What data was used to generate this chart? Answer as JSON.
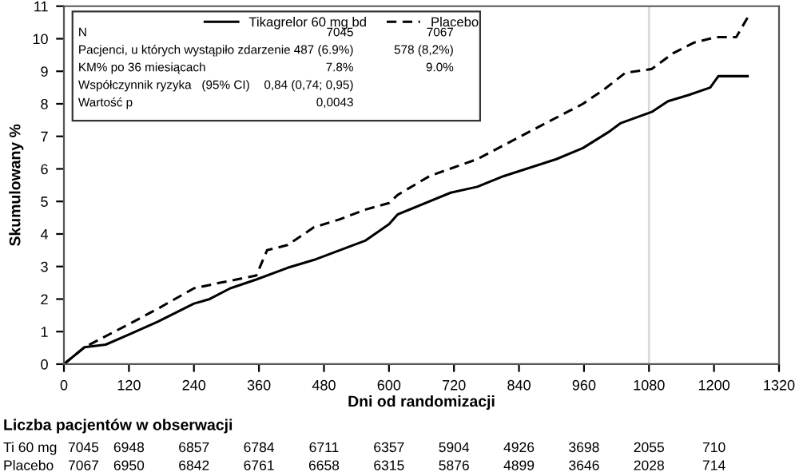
{
  "chart_data": {
    "type": "line",
    "xlabel": "Dni od randomizacji",
    "ylabel": "Skumulowany %",
    "xlim": [
      0,
      1320
    ],
    "xticks": [
      0,
      120,
      240,
      360,
      480,
      600,
      720,
      840,
      960,
      1080,
      1200,
      1320
    ],
    "ylim": [
      0,
      11
    ],
    "yticks": [
      0,
      1,
      2,
      3,
      4,
      5,
      6,
      7,
      8,
      9,
      10,
      11
    ],
    "grid": false,
    "legend": "top",
    "series": [
      {
        "name": "Tikagrelor 60 mg bd",
        "color": "#000000",
        "line_style": "solid",
        "x": [
          0,
          38,
          77,
          120,
          173,
          240,
          269,
          307,
          355,
          413,
          461,
          509,
          557,
          600,
          616,
          714,
          763,
          812,
          909,
          958,
          1007,
          1027,
          1085,
          1115,
          1153,
          1193,
          1208,
          1262
        ],
        "values": [
          0,
          0.52,
          0.6,
          0.91,
          1.3,
          1.86,
          2.0,
          2.33,
          2.6,
          2.96,
          3.2,
          3.5,
          3.8,
          4.3,
          4.6,
          5.27,
          5.45,
          5.78,
          6.3,
          6.64,
          7.15,
          7.4,
          7.75,
          8.08,
          8.27,
          8.5,
          8.85,
          8.85
        ]
      },
      {
        "name": "Placebo",
        "color": "#000000",
        "line_style": "dashed",
        "x": [
          0,
          38,
          120,
          173,
          240,
          288,
          355,
          375,
          413,
          461,
          509,
          557,
          600,
          616,
          675,
          763,
          860,
          958,
          997,
          1036,
          1085,
          1124,
          1163,
          1203,
          1241,
          1262
        ],
        "values": [
          0,
          0.52,
          1.23,
          1.7,
          2.33,
          2.5,
          2.72,
          3.5,
          3.66,
          4.2,
          4.45,
          4.75,
          4.95,
          5.2,
          5.78,
          6.3,
          7.15,
          8.0,
          8.44,
          8.95,
          9.07,
          9.55,
          9.88,
          10.05,
          10.05,
          10.65
        ]
      }
    ],
    "ref_lines": [
      {
        "axis": "x",
        "value": 1080,
        "color": "#d9d9d9"
      }
    ],
    "annotations": [
      "N",
      "Pacjenci, u których wystąpiło zdarzenie",
      "KM% po 36 miesiącach",
      "Współczynnik ryzyka   (95% CI)",
      "Wartość p",
      "7045",
      "487 (6.9%)",
      "7.8%",
      "0,84 (0,74; 0,95)",
      "0,0043",
      "7067",
      "578 (8,2%)",
      "9.0%",
      "Liczba pacjentów w obserwacji",
      "Ti 60 mg",
      "7045",
      "6948",
      "6857",
      "6784",
      "6711",
      "6357",
      "5904",
      "4926",
      "3698",
      "2055",
      "710",
      "Placebo",
      "7067",
      "6950",
      "6842",
      "6761",
      "6658",
      "6315",
      "5876",
      "4899",
      "3646",
      "2028",
      "714"
    ]
  }
}
